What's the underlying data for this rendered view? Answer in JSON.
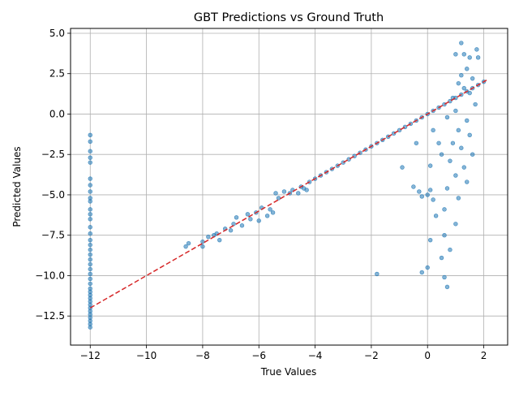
{
  "chart_data": {
    "type": "scatter",
    "title": "GBT Predictions vs Ground Truth",
    "xlabel": "True Values",
    "ylabel": "Predicted Values",
    "xlim": [
      -12.7,
      2.85
    ],
    "ylim": [
      -14.3,
      5.3
    ],
    "xticks": [
      -12,
      -10,
      -8,
      -6,
      -4,
      -2,
      0,
      2
    ],
    "yticks": [
      -12.5,
      -10.0,
      -7.5,
      -5.0,
      -2.5,
      0.0,
      2.5,
      5.0
    ],
    "xtick_labels": [
      "−12",
      "−10",
      "−8",
      "−6",
      "−4",
      "−2",
      "0",
      "2"
    ],
    "ytick_labels": [
      "−12.5",
      "−10.0",
      "−7.5",
      "−5.0",
      "−2.5",
      "0.0",
      "2.5",
      "5.0"
    ],
    "grid": true,
    "colors": {
      "points": "#1f77b4",
      "reference_line": "#d62728",
      "grid": "#b0b0b0"
    },
    "series": [
      {
        "kind": "points",
        "description_of_groups": [
          "x=-12 column",
          "main diagonal band",
          "upper-right cluster",
          "scattered underpredictions"
        ],
        "points": [
          [
            -12,
            -1.3
          ],
          [
            -12,
            -1.7
          ],
          [
            -12,
            -2.3
          ],
          [
            -12,
            -2.7
          ],
          [
            -12,
            -3.0
          ],
          [
            -12,
            -4.0
          ],
          [
            -12,
            -4.4
          ],
          [
            -12,
            -4.8
          ],
          [
            -12,
            -5.2
          ],
          [
            -12,
            -5.4
          ],
          [
            -12,
            -5.9
          ],
          [
            -12,
            -6.2
          ],
          [
            -12,
            -6.5
          ],
          [
            -12,
            -7.0
          ],
          [
            -12,
            -7.4
          ],
          [
            -12,
            -7.8
          ],
          [
            -12,
            -8.1
          ],
          [
            -12,
            -8.4
          ],
          [
            -12,
            -8.7
          ],
          [
            -12,
            -9.0
          ],
          [
            -12,
            -9.3
          ],
          [
            -12,
            -9.6
          ],
          [
            -12,
            -9.9
          ],
          [
            -12,
            -10.2
          ],
          [
            -12,
            -10.5
          ],
          [
            -12,
            -10.8
          ],
          [
            -12,
            -11.0
          ],
          [
            -12,
            -11.2
          ],
          [
            -12,
            -11.4
          ],
          [
            -12,
            -11.6
          ],
          [
            -12,
            -11.8
          ],
          [
            -12,
            -12.0
          ],
          [
            -12,
            -12.2
          ],
          [
            -12,
            -12.4
          ],
          [
            -12,
            -12.6
          ],
          [
            -12,
            -12.8
          ],
          [
            -12,
            -13.0
          ],
          [
            -12,
            -13.2
          ],
          [
            -8.6,
            -8.2
          ],
          [
            -8.5,
            -8.0
          ],
          [
            -8.0,
            -7.9
          ],
          [
            -8.0,
            -8.2
          ],
          [
            -7.8,
            -7.6
          ],
          [
            -7.6,
            -7.5
          ],
          [
            -7.5,
            -7.4
          ],
          [
            -7.4,
            -7.8
          ],
          [
            -7.2,
            -7.1
          ],
          [
            -7.0,
            -7.2
          ],
          [
            -6.9,
            -6.8
          ],
          [
            -6.8,
            -6.4
          ],
          [
            -6.6,
            -6.9
          ],
          [
            -6.4,
            -6.2
          ],
          [
            -6.3,
            -6.5
          ],
          [
            -6.1,
            -6.1
          ],
          [
            -6.0,
            -6.6
          ],
          [
            -5.9,
            -5.8
          ],
          [
            -5.7,
            -6.3
          ],
          [
            -5.6,
            -5.9
          ],
          [
            -5.5,
            -6.1
          ],
          [
            -5.4,
            -4.9
          ],
          [
            -5.3,
            -5.2
          ],
          [
            -5.1,
            -4.8
          ],
          [
            -4.9,
            -4.9
          ],
          [
            -4.8,
            -4.7
          ],
          [
            -4.6,
            -4.9
          ],
          [
            -4.5,
            -4.5
          ],
          [
            -4.4,
            -4.6
          ],
          [
            -4.3,
            -4.7
          ],
          [
            -4.2,
            -4.2
          ],
          [
            -4.0,
            -4.0
          ],
          [
            -3.8,
            -3.8
          ],
          [
            -3.6,
            -3.6
          ],
          [
            -3.4,
            -3.4
          ],
          [
            -3.2,
            -3.2
          ],
          [
            -3.0,
            -3.0
          ],
          [
            -2.8,
            -2.8
          ],
          [
            -2.6,
            -2.6
          ],
          [
            -2.4,
            -2.4
          ],
          [
            -2.2,
            -2.2
          ],
          [
            -2.0,
            -2.0
          ],
          [
            -1.8,
            -1.8
          ],
          [
            -1.6,
            -1.6
          ],
          [
            -1.4,
            -1.4
          ],
          [
            -1.2,
            -1.2
          ],
          [
            -1.0,
            -1.0
          ],
          [
            -0.8,
            -0.8
          ],
          [
            -0.6,
            -0.6
          ],
          [
            -0.4,
            -0.4
          ],
          [
            -0.2,
            -0.2
          ],
          [
            0.0,
            0.0
          ],
          [
            0.2,
            0.2
          ],
          [
            0.4,
            0.4
          ],
          [
            0.6,
            0.6
          ],
          [
            0.8,
            0.8
          ],
          [
            1.0,
            1.0
          ],
          [
            1.2,
            1.2
          ],
          [
            1.4,
            1.4
          ],
          [
            1.6,
            1.6
          ],
          [
            1.8,
            1.8
          ],
          [
            2.0,
            2.0
          ],
          [
            1.2,
            4.4
          ],
          [
            1.3,
            3.7
          ],
          [
            1.0,
            3.7
          ],
          [
            1.5,
            3.5
          ],
          [
            1.75,
            4.0
          ],
          [
            1.8,
            3.5
          ],
          [
            1.4,
            2.8
          ],
          [
            1.2,
            2.4
          ],
          [
            1.6,
            2.2
          ],
          [
            1.1,
            1.9
          ],
          [
            1.3,
            1.6
          ],
          [
            1.5,
            1.3
          ],
          [
            0.9,
            1.0
          ],
          [
            1.7,
            0.6
          ],
          [
            1.0,
            0.2
          ],
          [
            1.4,
            -0.4
          ],
          [
            0.7,
            -0.2
          ],
          [
            1.1,
            -1.0
          ],
          [
            1.5,
            -1.3
          ],
          [
            0.9,
            -1.8
          ],
          [
            1.2,
            -2.1
          ],
          [
            1.6,
            -2.5
          ],
          [
            0.8,
            -2.9
          ],
          [
            1.3,
            -3.3
          ],
          [
            1.0,
            -3.8
          ],
          [
            1.4,
            -4.2
          ],
          [
            0.7,
            -4.6
          ],
          [
            1.1,
            -5.2
          ],
          [
            0.6,
            -5.9
          ],
          [
            1.0,
            -6.8
          ],
          [
            0.6,
            -7.5
          ],
          [
            0.8,
            -8.4
          ],
          [
            0.5,
            -8.9
          ],
          [
            0.6,
            -10.1
          ],
          [
            0.7,
            -10.7
          ],
          [
            0.3,
            -6.3
          ],
          [
            0.2,
            -5.3
          ],
          [
            0.0,
            -5.0
          ],
          [
            0.1,
            -4.7
          ],
          [
            -0.2,
            -5.1
          ],
          [
            -0.3,
            -4.8
          ],
          [
            -0.5,
            -4.5
          ],
          [
            -0.9,
            -3.3
          ],
          [
            0.1,
            -3.2
          ],
          [
            -1.8,
            -9.9
          ],
          [
            0.0,
            -9.5
          ],
          [
            -0.2,
            -9.8
          ],
          [
            0.1,
            -7.8
          ],
          [
            0.4,
            -1.8
          ],
          [
            0.2,
            -1.0
          ],
          [
            0.5,
            -2.5
          ],
          [
            -0.4,
            -1.8
          ]
        ]
      }
    ],
    "reference_line": {
      "from": [
        -12,
        -12
      ],
      "to": [
        2.1,
        2.1
      ],
      "style": "dashed"
    }
  }
}
